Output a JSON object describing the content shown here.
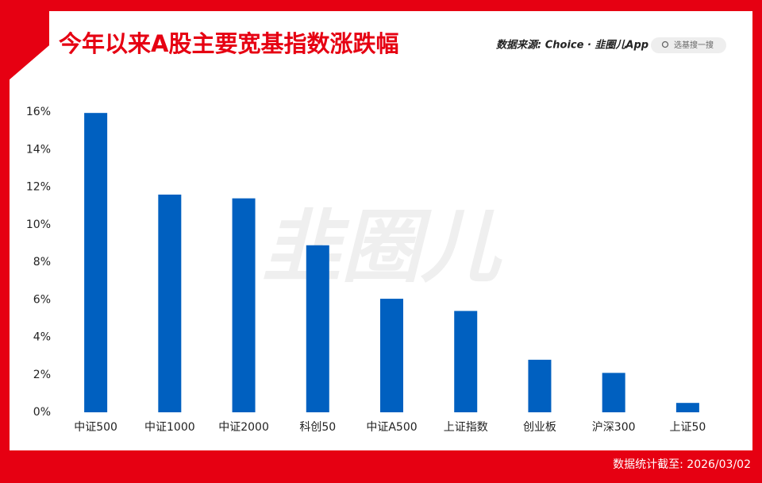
{
  "chart_data": {
    "type": "bar",
    "title": "今年以来A股主要宽基指数涨跌幅",
    "source": "数据来源: Choice · 韭圈儿App",
    "search": "选基搜一搜",
    "watermark": "韭圈儿",
    "footnote": "数据统计截至: 2026/03/02",
    "categories": [
      "中证500",
      "中证1000",
      "中证2000",
      "科创50",
      "中证A500",
      "上证指数",
      "创业板",
      "沪深300",
      "上证50"
    ],
    "values": [
      15.95,
      11.6,
      11.4,
      8.9,
      6.05,
      5.4,
      2.8,
      2.1,
      0.5
    ],
    "color": "#0060c0",
    "ylim": [
      0,
      16
    ],
    "yticks": [
      {
        "value": 0,
        "label": "0%"
      },
      {
        "value": 2,
        "label": "2%"
      },
      {
        "value": 4,
        "label": "4%"
      },
      {
        "value": 6,
        "label": "6%"
      },
      {
        "value": 8,
        "label": "8%"
      },
      {
        "value": 10,
        "label": "10%"
      },
      {
        "value": 12,
        "label": "12%"
      },
      {
        "value": 14,
        "label": "14%"
      },
      {
        "value": 16,
        "label": "16%"
      }
    ],
    "grid": false
  }
}
